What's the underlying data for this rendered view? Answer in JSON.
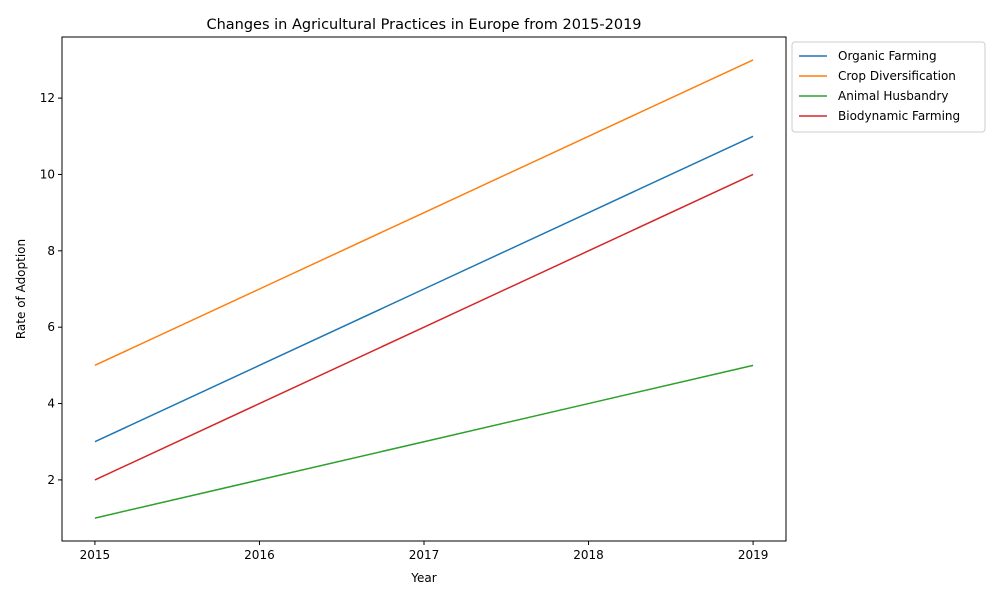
{
  "chart_data": {
    "type": "line",
    "title": "Changes in Agricultural Practices in Europe from 2015-2019",
    "xlabel": "Year",
    "ylabel": "Rate of Adoption",
    "x": [
      "2015",
      "2016",
      "2017",
      "2018",
      "2019"
    ],
    "xlim": [
      2014.8,
      2019.2
    ],
    "ylim": [
      0.4,
      13.6
    ],
    "yticks": [
      "2",
      "4",
      "6",
      "8",
      "10",
      "12"
    ],
    "grid": false,
    "legend_position": "outside top-right",
    "series": [
      {
        "name": "Organic Farming",
        "color": "#1f77b4",
        "values": [
          3,
          5,
          7,
          9,
          11
        ]
      },
      {
        "name": "Crop Diversification",
        "color": "#ff7f0e",
        "values": [
          5,
          7,
          9,
          11,
          13
        ]
      },
      {
        "name": "Animal Husbandry",
        "color": "#2ca02c",
        "values": [
          1,
          2,
          3,
          4,
          5
        ]
      },
      {
        "name": "Biodynamic Farming",
        "color": "#d62728",
        "values": [
          2,
          4,
          6,
          8,
          10
        ]
      }
    ]
  }
}
